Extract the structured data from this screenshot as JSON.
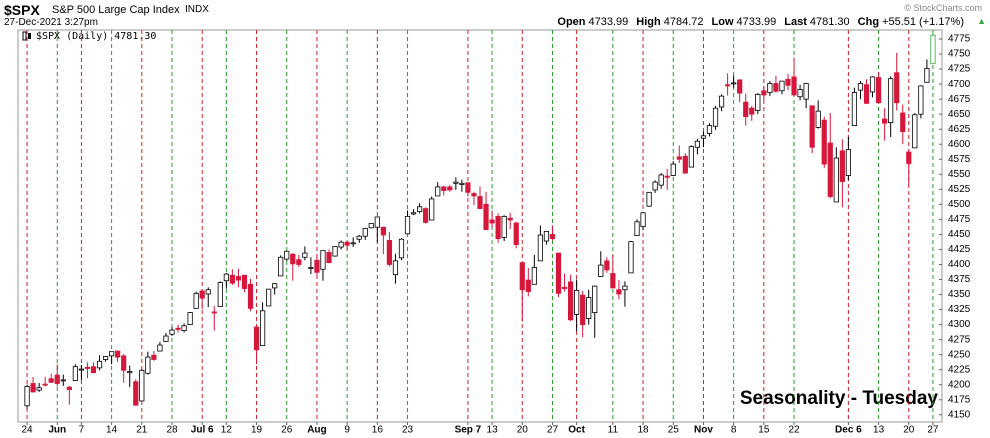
{
  "chart_data": {
    "type": "candlestick",
    "symbol": "$SPX",
    "title": "S&P 500 Large Cap Index",
    "exchange": "INDX",
    "timestamp": "27-Dec-2021 3:27pm",
    "credit": "© StockCharts.com",
    "info": [
      {
        "label": "Open",
        "value": "4733.99"
      },
      {
        "label": "High",
        "value": "4784.72"
      },
      {
        "label": "Low",
        "value": "4733.99"
      },
      {
        "label": "Last",
        "value": "4781.30"
      },
      {
        "label": "Chg",
        "value": "+55.51 (+1.17%)"
      }
    ],
    "legend": "$SPX (Daily) 4781.30",
    "annotation": "Seasonality - Tuesday",
    "up_color": "#ffffff",
    "down_color": "#d6173c",
    "latest_color": "#3aa845",
    "annotation_color": "#1010d0",
    "grid": false,
    "ylim": [
      4138,
      4790
    ],
    "yticks": [
      4150,
      4175,
      4200,
      4225,
      4250,
      4275,
      4300,
      4325,
      4350,
      4375,
      4400,
      4425,
      4450,
      4475,
      4500,
      4525,
      4550,
      4575,
      4600,
      4625,
      4650,
      4675,
      4700,
      4725,
      4750,
      4775
    ],
    "categories": [
      "24",
      null,
      null,
      null,
      null,
      "Jun",
      null,
      null,
      null,
      "7",
      null,
      null,
      null,
      null,
      "14",
      null,
      null,
      null,
      null,
      "21",
      null,
      null,
      null,
      null,
      "28",
      null,
      null,
      null,
      null,
      "Jul 6",
      null,
      null,
      null,
      "12",
      null,
      null,
      null,
      null,
      "19",
      null,
      null,
      null,
      null,
      "26",
      null,
      null,
      null,
      null,
      "Aug",
      null,
      null,
      null,
      null,
      "9",
      null,
      null,
      null,
      null,
      "16",
      null,
      null,
      null,
      null,
      "23",
      null,
      null,
      null,
      null,
      null,
      null,
      null,
      null,
      null,
      "Sep 7",
      null,
      null,
      null,
      "13",
      null,
      null,
      null,
      null,
      "20",
      null,
      null,
      null,
      null,
      "27",
      null,
      null,
      null,
      "Oct",
      null,
      null,
      null,
      null,
      null,
      "11",
      null,
      null,
      null,
      null,
      "18",
      null,
      null,
      null,
      null,
      "25",
      null,
      null,
      null,
      null,
      "Nov",
      null,
      null,
      null,
      null,
      "8",
      null,
      null,
      null,
      null,
      "15",
      null,
      null,
      null,
      null,
      "22",
      null,
      null,
      null,
      null,
      null,
      null,
      null,
      null,
      "Dec 6",
      null,
      null,
      null,
      null,
      "13",
      null,
      null,
      null,
      null,
      "20",
      null,
      null,
      null,
      "27"
    ],
    "ohlc": [
      [
        4165,
        4200,
        4160,
        4197
      ],
      [
        4202,
        4213,
        4187,
        4188
      ],
      [
        4191,
        4203,
        4188,
        4195
      ],
      [
        4201,
        4213,
        4197,
        4200
      ],
      [
        4210,
        4218,
        4203,
        4204
      ],
      [
        4216,
        4234,
        4197,
        4202
      ],
      [
        4207,
        4217,
        4198,
        4208
      ],
      [
        4196,
        4198,
        4167,
        4192
      ],
      [
        4207,
        4234,
        4206,
        4230
      ],
      [
        4226,
        4233,
        4208,
        4226
      ],
      [
        4229,
        4237,
        4211,
        4227
      ],
      [
        4230,
        4237,
        4219,
        4220
      ],
      [
        4228,
        4249,
        4224,
        4239
      ],
      [
        4242,
        4248,
        4238,
        4247
      ],
      [
        4248,
        4255,
        4234,
        4255
      ],
      [
        4256,
        4257,
        4238,
        4246
      ],
      [
        4248,
        4251,
        4203,
        4224
      ],
      [
        4220,
        4232,
        4196,
        4222
      ],
      [
        4205,
        4209,
        4165,
        4166
      ],
      [
        4173,
        4226,
        4173,
        4224
      ],
      [
        4219,
        4255,
        4217,
        4246
      ],
      [
        4249,
        4256,
        4240,
        4242
      ],
      [
        4256,
        4271,
        4256,
        4266
      ],
      [
        4272,
        4286,
        4271,
        4281
      ],
      [
        4284,
        4296,
        4281,
        4291
      ],
      [
        4294,
        4300,
        4287,
        4292
      ],
      [
        4290,
        4302,
        4287,
        4298
      ],
      [
        4300,
        4321,
        4300,
        4320
      ],
      [
        4327,
        4355,
        4327,
        4352
      ],
      [
        4356,
        4357,
        4326,
        4344
      ],
      [
        4351,
        4362,
        4329,
        4358
      ],
      [
        4321,
        4331,
        4290,
        4320
      ],
      [
        4330,
        4372,
        4330,
        4370
      ],
      [
        4373,
        4386,
        4360,
        4384
      ],
      [
        4382,
        4392,
        4366,
        4369
      ],
      [
        4380,
        4393,
        4362,
        4374
      ],
      [
        4382,
        4383,
        4354,
        4360
      ],
      [
        4367,
        4376,
        4322,
        4327
      ],
      [
        4296,
        4297,
        4234,
        4258
      ],
      [
        4265,
        4337,
        4265,
        4323
      ],
      [
        4331,
        4359,
        4331,
        4359
      ],
      [
        4361,
        4369,
        4350,
        4368
      ],
      [
        4381,
        4415,
        4381,
        4412
      ],
      [
        4409,
        4423,
        4406,
        4422
      ],
      [
        4417,
        4419,
        4373,
        4401
      ],
      [
        4408,
        4416,
        4396,
        4400
      ],
      [
        4412,
        4430,
        4407,
        4419
      ],
      [
        4395,
        4412,
        4384,
        4395
      ],
      [
        4407,
        4415,
        4381,
        4387
      ],
      [
        4392,
        4423,
        4373,
        4423
      ],
      [
        4420,
        4425,
        4403,
        4403
      ],
      [
        4414,
        4430,
        4413,
        4430
      ],
      [
        4429,
        4440,
        4425,
        4437
      ],
      [
        4437,
        4439,
        4424,
        4432
      ],
      [
        4436,
        4445,
        4429,
        4436
      ],
      [
        4442,
        4449,
        4436,
        4447
      ],
      [
        4447,
        4461,
        4441,
        4460
      ],
      [
        4461,
        4468,
        4460,
        4468
      ],
      [
        4462,
        4480,
        4437,
        4479
      ],
      [
        4462,
        4462,
        4417,
        4449
      ],
      [
        4440,
        4454,
        4397,
        4400
      ],
      [
        4383,
        4418,
        4368,
        4406
      ],
      [
        4411,
        4444,
        4407,
        4442
      ],
      [
        4451,
        4490,
        4451,
        4480
      ],
      [
        4484,
        4492,
        4482,
        4486
      ],
      [
        4488,
        4502,
        4485,
        4496
      ],
      [
        4493,
        4495,
        4468,
        4470
      ],
      [
        4474,
        4513,
        4474,
        4509
      ],
      [
        4514,
        4537,
        4514,
        4529
      ],
      [
        4529,
        4531,
        4515,
        4523
      ],
      [
        4529,
        4532,
        4521,
        4524
      ],
      [
        4535,
        4545,
        4524,
        4537
      ],
      [
        4533,
        4541,
        4521,
        4535
      ],
      [
        4536,
        4536,
        4513,
        4520
      ],
      [
        4518,
        4521,
        4499,
        4514
      ],
      [
        4513,
        4530,
        4493,
        4493
      ],
      [
        4500,
        4521,
        4458,
        4458
      ],
      [
        4474,
        4490,
        4461,
        4469
      ],
      [
        4480,
        4485,
        4436,
        4443
      ],
      [
        4445,
        4482,
        4439,
        4480
      ],
      [
        4477,
        4486,
        4459,
        4474
      ],
      [
        4469,
        4471,
        4427,
        4433
      ],
      [
        4403,
        4403,
        4305,
        4358
      ],
      [
        4374,
        4394,
        4347,
        4355
      ],
      [
        4367,
        4416,
        4367,
        4395
      ],
      [
        4406,
        4465,
        4406,
        4449
      ],
      [
        4439,
        4455,
        4433,
        4455
      ],
      [
        4450,
        4465,
        4440,
        4443
      ],
      [
        4419,
        4419,
        4346,
        4352
      ],
      [
        4362,
        4385,
        4355,
        4360
      ],
      [
        4371,
        4383,
        4306,
        4308
      ],
      [
        4317,
        4375,
        4289,
        4357
      ],
      [
        4349,
        4356,
        4279,
        4300
      ],
      [
        4310,
        4358,
        4300,
        4345
      ],
      [
        4320,
        4365,
        4278,
        4364
      ],
      [
        4380,
        4422,
        4380,
        4399
      ],
      [
        4406,
        4412,
        4386,
        4391
      ],
      [
        4385,
        4416,
        4360,
        4361
      ],
      [
        4358,
        4374,
        4342,
        4351
      ],
      [
        4358,
        4372,
        4330,
        4364
      ],
      [
        4386,
        4439,
        4386,
        4438
      ],
      [
        4448,
        4475,
        4448,
        4471
      ],
      [
        4463,
        4487,
        4457,
        4486
      ],
      [
        4497,
        4520,
        4496,
        4520
      ],
      [
        4524,
        4540,
        4519,
        4537
      ],
      [
        4532,
        4552,
        4526,
        4549
      ],
      [
        4547,
        4559,
        4524,
        4545
      ],
      [
        4548,
        4572,
        4547,
        4567
      ],
      [
        4579,
        4598,
        4569,
        4575
      ],
      [
        4580,
        4585,
        4551,
        4552
      ],
      [
        4562,
        4598,
        4562,
        4596
      ],
      [
        4595,
        4609,
        4583,
        4605
      ],
      [
        4610,
        4621,
        4595,
        4614
      ],
      [
        4618,
        4635,
        4613,
        4631
      ],
      [
        4630,
        4664,
        4624,
        4660
      ],
      [
        4662,
        4683,
        4655,
        4680
      ],
      [
        4699,
        4718,
        4681,
        4697
      ],
      [
        4701,
        4714,
        4694,
        4702
      ],
      [
        4707,
        4708,
        4670,
        4685
      ],
      [
        4670,
        4684,
        4631,
        4646
      ],
      [
        4660,
        4664,
        4639,
        4650
      ],
      [
        4656,
        4685,
        4650,
        4683
      ],
      [
        4689,
        4697,
        4673,
        4682
      ],
      [
        4686,
        4705,
        4680,
        4701
      ],
      [
        4701,
        4714,
        4686,
        4688
      ],
      [
        4689,
        4705,
        4683,
        4705
      ],
      [
        4708,
        4717,
        4690,
        4698
      ],
      [
        4712,
        4744,
        4680,
        4682
      ],
      [
        4679,
        4699,
        4673,
        4691
      ],
      [
        4675,
        4702,
        4660,
        4701
      ],
      [
        4664,
        4664,
        4585,
        4595
      ],
      [
        4628,
        4673,
        4626,
        4655
      ],
      [
        4640,
        4646,
        4560,
        4567
      ],
      [
        4602,
        4652,
        4510,
        4513
      ],
      [
        4504,
        4595,
        4504,
        4577
      ],
      [
        4589,
        4608,
        4495,
        4538
      ],
      [
        4548,
        4612,
        4540,
        4591
      ],
      [
        4631,
        4694,
        4631,
        4686
      ],
      [
        4690,
        4705,
        4675,
        4701
      ],
      [
        4699,
        4708,
        4667,
        4668
      ],
      [
        4687,
        4713,
        4678,
        4712
      ],
      [
        4711,
        4720,
        4668,
        4669
      ],
      [
        4642,
        4660,
        4606,
        4635
      ],
      [
        4636,
        4713,
        4612,
        4709
      ],
      [
        4719,
        4752,
        4656,
        4669
      ],
      [
        4652,
        4666,
        4600,
        4621
      ],
      [
        4587,
        4592,
        4531,
        4568
      ],
      [
        4594,
        4652,
        4594,
        4649
      ],
      [
        4650,
        4698,
        4643,
        4697
      ],
      [
        4703,
        4741,
        4703,
        4726
      ],
      [
        4733.99,
        4784.72,
        4733.99,
        4781.3
      ]
    ]
  }
}
